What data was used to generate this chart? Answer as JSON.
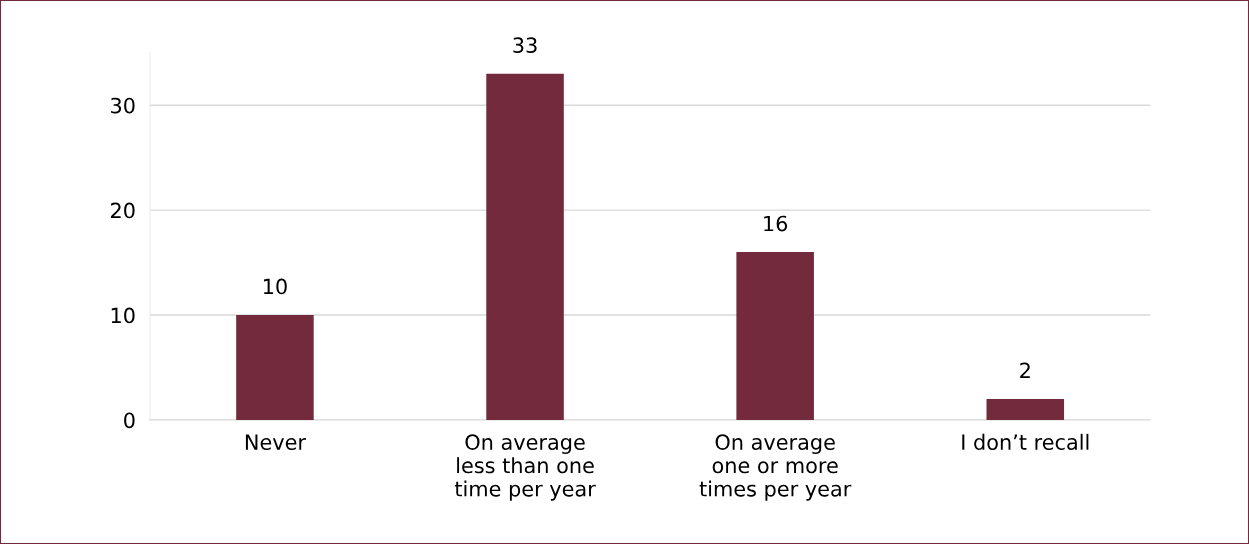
{
  "chart_data": {
    "type": "bar",
    "categories": [
      "Never",
      "On average\nless than one\ntime per year",
      "On average\none or more\ntimes per year",
      "I don’t recall"
    ],
    "values": [
      10,
      33,
      16,
      2
    ],
    "color": "#722a3c",
    "ylim": [
      0,
      35
    ],
    "yticks": [
      0,
      10,
      20,
      30
    ],
    "grid": "y",
    "data_labels": true
  }
}
